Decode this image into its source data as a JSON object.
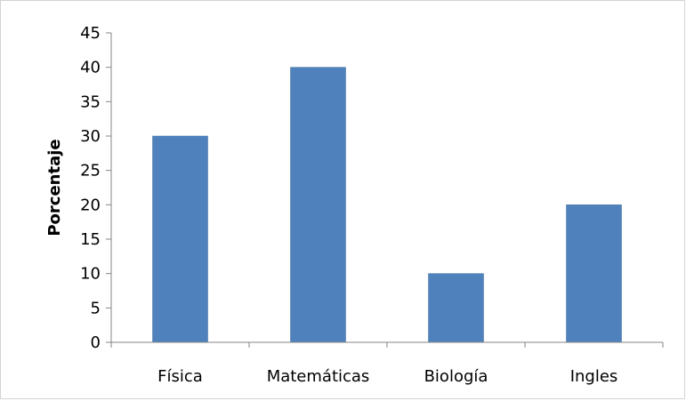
{
  "chart_data": {
    "type": "bar",
    "categories": [
      "Física",
      "Matemáticas",
      "Biología",
      "Ingles"
    ],
    "values": [
      30,
      40,
      10,
      20
    ],
    "title": "",
    "xlabel": "",
    "ylabel": "Porcentaje",
    "ylim": [
      0,
      45
    ],
    "yticks": [
      0,
      5,
      10,
      15,
      20,
      25,
      30,
      35,
      40,
      45
    ],
    "grid": false,
    "legend": "none",
    "bar_color": "#4f81bd",
    "bar_border_color": "#416c9f"
  }
}
